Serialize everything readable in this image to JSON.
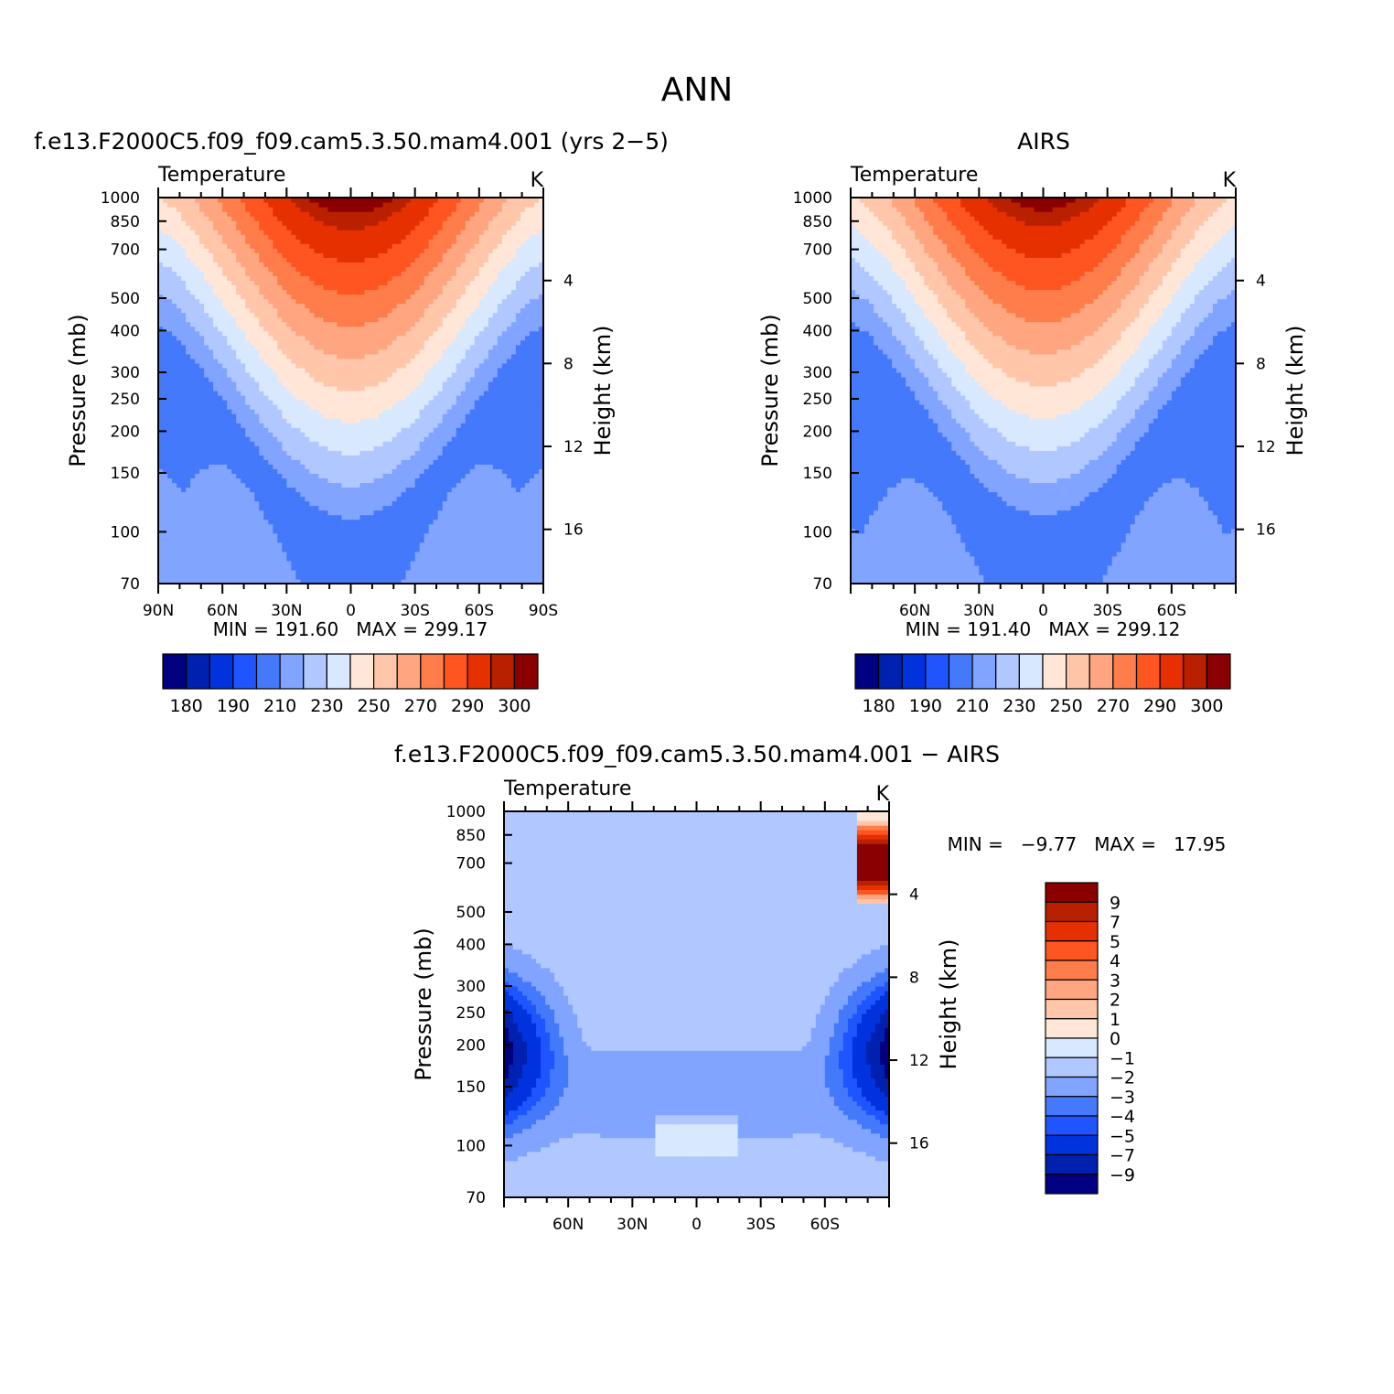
{
  "figure": {
    "title": "ANN"
  },
  "colors": {
    "temp_levels": [
      "#000080",
      "#0020b0",
      "#0033dd",
      "#1f55ff",
      "#4479fb",
      "#80a4ff",
      "#b0c8ff",
      "#d8e8ff",
      "#ffe6d6",
      "#ffc6aa",
      "#ffa680",
      "#ff7d4a",
      "#ff5520",
      "#e63000",
      "#b82000",
      "#8a0000"
    ],
    "diff_levels": [
      "#000080",
      "#0020b0",
      "#0033dd",
      "#1f55ff",
      "#4479fb",
      "#80a4ff",
      "#b0c8ff",
      "#d8e8ff",
      "#ffe6d6",
      "#ffc6aa",
      "#ffa680",
      "#ff7d4a",
      "#ff5520",
      "#e63000",
      "#b82000",
      "#8a0000"
    ]
  },
  "chart_data": [
    {
      "type": "heatmap",
      "title": "f.e13.F2000C5.f09_f09.cam5.3.50.mam4.001 (yrs 2−5)",
      "left_label": "Temperature",
      "right_label": "K",
      "ylabel": "Pressure (mb)",
      "y2label": "Height (km)",
      "x_ticks": [
        "90N",
        "60N",
        "30N",
        "0",
        "30S",
        "60S",
        "90S"
      ],
      "x": [
        90,
        60,
        30,
        0,
        -30,
        -60,
        -90
      ],
      "y_ticks": [
        70,
        100,
        150,
        200,
        250,
        300,
        400,
        500,
        700,
        850,
        1000
      ],
      "y2_ticks": [
        16,
        12,
        8,
        4
      ],
      "ylim": [
        1000,
        70
      ],
      "y_scale": "log",
      "min_label": "MIN =",
      "min": "191.60",
      "max_label": "MAX =",
      "max": "299.17",
      "colorbar_labels": [
        "180",
        "190",
        "210",
        "230",
        "250",
        "270",
        "290",
        "300"
      ],
      "levels": [
        175,
        180,
        185,
        190,
        200,
        210,
        220,
        230,
        240,
        250,
        260,
        270,
        280,
        290,
        295,
        300
      ]
    },
    {
      "type": "heatmap",
      "title": "AIRS",
      "left_label": "Temperature",
      "right_label": "K",
      "ylabel": "Pressure (mb)",
      "y2label": "Height (km)",
      "x_ticks": [
        "60N",
        "30N",
        "0",
        "30S",
        "60S"
      ],
      "x": [
        60,
        30,
        0,
        -30,
        -60
      ],
      "y_ticks": [
        70,
        100,
        150,
        200,
        250,
        300,
        400,
        500,
        700,
        850,
        1000
      ],
      "y2_ticks": [
        16,
        12,
        8,
        4
      ],
      "ylim": [
        1000,
        70
      ],
      "y_scale": "log",
      "min_label": "MIN =",
      "min": "191.40",
      "max_label": "MAX =",
      "max": "299.12",
      "colorbar_labels": [
        "180",
        "190",
        "210",
        "230",
        "250",
        "270",
        "290",
        "300"
      ],
      "levels": [
        175,
        180,
        185,
        190,
        200,
        210,
        220,
        230,
        240,
        250,
        260,
        270,
        280,
        290,
        295,
        300
      ]
    },
    {
      "type": "heatmap",
      "title": "f.e13.F2000C5.f09_f09.cam5.3.50.mam4.001 − AIRS",
      "left_label": "Temperature",
      "right_label": "K",
      "ylabel": "Pressure (mb)",
      "y2label": "Height (km)",
      "x_ticks": [
        "60N",
        "30N",
        "0",
        "30S",
        "60S"
      ],
      "x": [
        60,
        30,
        0,
        -30,
        -60
      ],
      "y_ticks": [
        70,
        100,
        150,
        200,
        250,
        300,
        400,
        500,
        700,
        850,
        1000
      ],
      "y2_ticks": [
        16,
        12,
        8,
        4
      ],
      "ylim": [
        1000,
        70
      ],
      "y_scale": "log",
      "min_label": "MIN =",
      "min": "−9.77",
      "max_label": "MAX =",
      "max": "17.95",
      "colorbar_labels": [
        "9",
        "7",
        "5",
        "4",
        "3",
        "2",
        "1",
        "0",
        "−1",
        "−2",
        "−3",
        "−4",
        "−5",
        "−7",
        "−9"
      ],
      "levels": [
        -9,
        -7,
        -5,
        -4,
        -3,
        -2,
        -1,
        0,
        1,
        2,
        3,
        4,
        5,
        7,
        9
      ]
    }
  ]
}
